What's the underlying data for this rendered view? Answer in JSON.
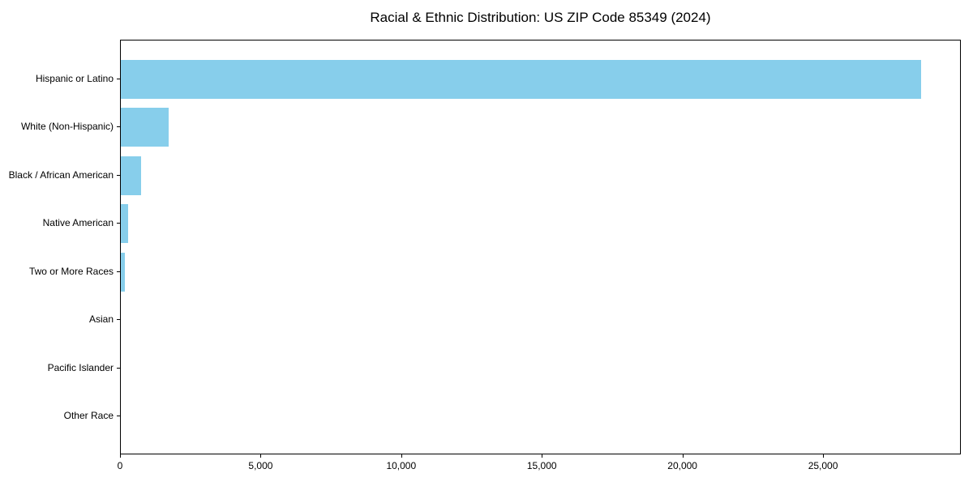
{
  "figure": {
    "background": "#ffffff"
  },
  "chart_data": {
    "type": "bar",
    "orientation": "horizontal",
    "title": "Racial & Ethnic Distribution: US ZIP Code 85349 (2024)",
    "categories": [
      "Hispanic or Latino",
      "White (Non-Hispanic)",
      "Black / African American",
      "Native American",
      "Two or More Races",
      "Asian",
      "Pacific Islander",
      "Other Race"
    ],
    "values": [
      28500,
      1700,
      720,
      260,
      150,
      0,
      0,
      0
    ],
    "xlabel": "",
    "ylabel": "",
    "xlim": [
      0,
      29900
    ],
    "x_ticks": [
      0,
      5000,
      10000,
      15000,
      20000,
      25000
    ],
    "x_tick_labels": [
      "0",
      "5,000",
      "10,000",
      "15,000",
      "20,000",
      "25,000"
    ],
    "bar_color": "#87CEEB",
    "axis_color": "#000000",
    "text_color": "#000000",
    "grid": false,
    "legend_position": "none"
  }
}
